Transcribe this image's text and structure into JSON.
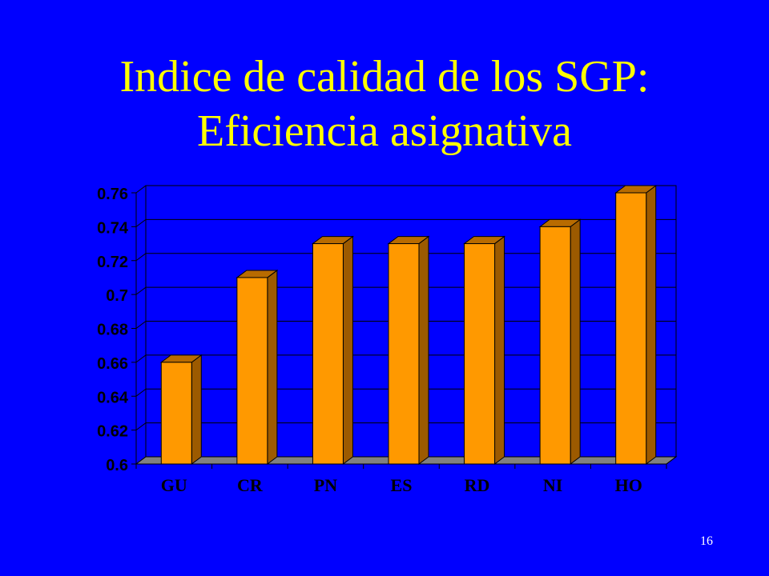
{
  "slide": {
    "title_line1": "Indice de calidad de los SGP:",
    "title_line2": "Eficiencia asignativa",
    "page_number": "16"
  },
  "colors": {
    "background": "#0000ff",
    "title": "#ffff00",
    "bar_front": "#ff9900",
    "bar_side": "#9c5a00",
    "bar_top": "#b86b00",
    "floor": "#808080",
    "grid": "#000000",
    "plot_bg": "#0000ff"
  },
  "chart_data": {
    "type": "bar",
    "categories": [
      "GU",
      "CR",
      "PN",
      "ES",
      "RD",
      "NI",
      "HO"
    ],
    "values": [
      0.66,
      0.71,
      0.73,
      0.73,
      0.73,
      0.74,
      0.76
    ],
    "ylim": [
      0.6,
      0.76
    ],
    "yticks": [
      "0.6",
      "0.62",
      "0.64",
      "0.66",
      "0.68",
      "0.7",
      "0.72",
      "0.74",
      "0.76"
    ],
    "grid": true,
    "legend": "none",
    "style": "3d"
  }
}
